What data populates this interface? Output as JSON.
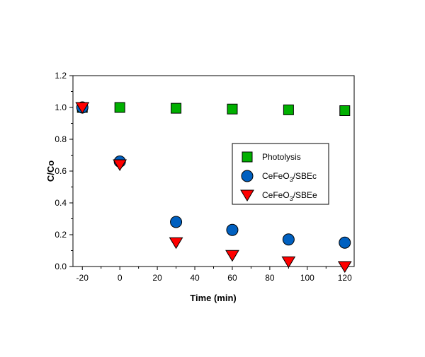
{
  "chart_data": {
    "type": "scatter",
    "title": "",
    "xlabel": "Time (min)",
    "ylabel": "C/Co",
    "xlim": [
      -25,
      125
    ],
    "ylim": [
      0,
      1.2
    ],
    "xticks": [
      -20,
      0,
      20,
      40,
      60,
      80,
      100,
      120
    ],
    "xtick_labels": [
      "-20",
      "0",
      "20",
      "40",
      "60",
      "80",
      "100",
      "120"
    ],
    "yticks": [
      0,
      0.2,
      0.4,
      0.6,
      0.8,
      1.0,
      1.2
    ],
    "ytick_labels": [
      "0.0",
      "0.2",
      "0.4",
      "0.6",
      "0.8",
      "1.0",
      "1.2"
    ],
    "grid": false,
    "legend_position": "center-right",
    "x": [
      -20,
      0,
      30,
      60,
      90,
      120
    ],
    "series": [
      {
        "name": "Photolysis",
        "name_main": "Photolysis",
        "name_sub": "",
        "name_tail": "",
        "marker": "square",
        "color": "#00b000",
        "values": [
          1.0,
          1.0,
          0.995,
          0.99,
          0.985,
          0.98
        ]
      },
      {
        "name": "CeFeO3/SBEc",
        "name_main": "CeFeO",
        "name_sub": "3",
        "name_tail": "/SBEc",
        "marker": "circle",
        "color": "#0060c0",
        "values": [
          1.0,
          0.66,
          0.28,
          0.23,
          0.17,
          0.15
        ]
      },
      {
        "name": "CeFeO3/SBEe",
        "name_main": "CeFeO",
        "name_sub": "3",
        "name_tail": "/SBEe",
        "marker": "triangle-down",
        "color": "#ff0000",
        "values": [
          1.0,
          0.64,
          0.15,
          0.07,
          0.03,
          0.0
        ]
      }
    ]
  }
}
